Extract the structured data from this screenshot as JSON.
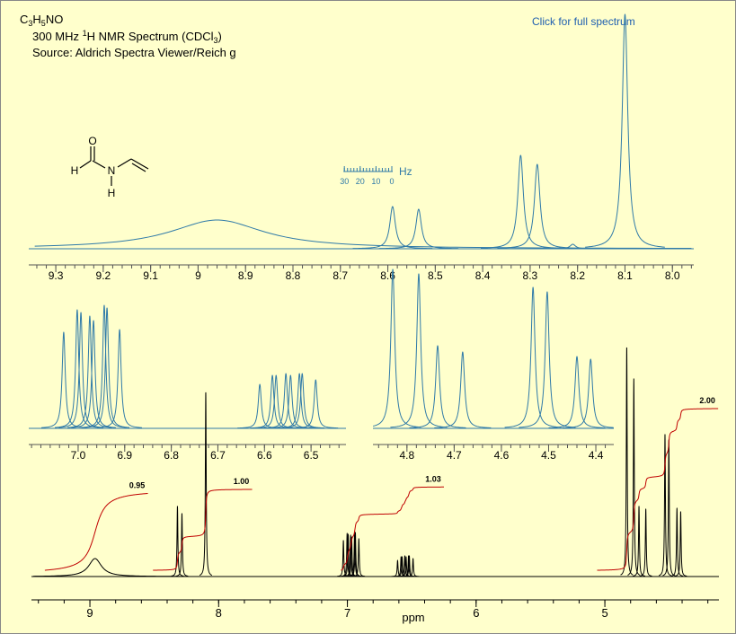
{
  "header": {
    "formula": [
      "C",
      "3",
      "H",
      "5",
      "NO"
    ],
    "line2": [
      "300 MHz ",
      "1",
      "H NMR Spectrum (CDCl",
      "3",
      ")"
    ],
    "source": "Source: Aldrich Spectra Viewer/Reich g",
    "link": "Click for full spectrum"
  },
  "molecule": {
    "atoms": [
      "O",
      "H",
      "N",
      "H"
    ]
  },
  "hz_scale": {
    "ticks": [
      30,
      20,
      10,
      0
    ],
    "unit": "Hz"
  },
  "chart_data": [
    {
      "type": "peaks",
      "xlim": [
        9.357,
        7.955
      ],
      "ylim": [
        0,
        265
      ],
      "xticks": [
        9.3,
        9.2,
        9.1,
        9.0,
        8.9,
        8.8,
        8.7,
        8.6,
        8.5,
        8.4,
        8.3,
        8.2,
        8.1,
        {
          "value": 8,
          "label": "8.0"
        }
      ],
      "series": [
        {
          "color": "#2f7aa8",
          "linewidth": 0.007,
          "x": [
            8.59,
            8.535,
            8.32,
            8.285,
            8.21,
            8.1
          ],
          "values": [
            47,
            44,
            104,
            94,
            5,
            261
          ]
        },
        {
          "color": "#2f7aa8",
          "linewidth": 0.12,
          "x": [
            8.96
          ],
          "values": [
            32
          ]
        }
      ]
    },
    {
      "type": "peaks",
      "xlim": [
        7.106,
        6.425
      ],
      "ylim": [
        0,
        145
      ],
      "xticks": [
        {
          "value": 7,
          "label": "7.0"
        },
        6.9,
        6.8,
        6.7,
        6.6,
        6.5
      ],
      "series": [
        {
          "color": "#2f7aa8",
          "linewidth": 0.004,
          "x": [
            7.031,
            7.002,
            6.994,
            6.975,
            6.967,
            6.944,
            6.938,
            6.911,
            6.61,
            6.583,
            6.575,
            6.554,
            6.544,
            6.525,
            6.519,
            6.49
          ],
          "values": [
            107,
            132,
            129,
            125,
            120,
            137,
            134,
            110,
            49,
            59,
            59,
            61,
            59,
            61,
            61,
            54
          ]
        }
      ]
    },
    {
      "type": "peaks",
      "xlim": [
        4.872,
        4.362
      ],
      "ylim": [
        0,
        180
      ],
      "xticks": [
        4.8,
        4.7,
        4.6,
        4.5,
        4.4
      ],
      "series": [
        {
          "color": "#2f7aa8",
          "linewidth": 0.005,
          "x": [
            4.83,
            4.775,
            4.735,
            4.682,
            4.533,
            4.503,
            4.44,
            4.411
          ],
          "values": [
            177,
            172,
            92,
            85,
            157,
            152,
            80,
            77
          ]
        }
      ]
    },
    {
      "type": "peaks",
      "xlim": [
        9.454,
        4.114
      ],
      "ylim": [
        0,
        260
      ],
      "xlabel": "ppm",
      "xticks": [
        9,
        8,
        7,
        6,
        5
      ],
      "series": [
        {
          "color": "#000000",
          "linewidth": 0.004,
          "x": [
            8.32,
            8.285,
            8.1,
            7.031,
            7.002,
            6.994,
            6.975,
            6.967,
            6.944,
            6.938,
            6.911,
            6.61,
            6.583,
            6.575,
            6.554,
            6.544,
            6.525,
            6.519,
            6.49,
            4.83,
            4.775,
            4.735,
            4.682,
            4.533,
            4.503,
            4.44,
            4.411
          ],
          "values": [
            78,
            70,
            205,
            40,
            48,
            47,
            46,
            44,
            50,
            49,
            42,
            18,
            22,
            22,
            23,
            22,
            23,
            23,
            20,
            255,
            220,
            78,
            75,
            158,
            152,
            76,
            72
          ]
        },
        {
          "color": "#000000",
          "linewidth": 0.06,
          "x": [
            8.96
          ],
          "values": [
            20
          ]
        }
      ],
      "integrals": {
        "color": "#c00000",
        "ranges": [
          [
            9.35,
            8.55
          ],
          [
            8.51,
            7.74
          ],
          [
            7.05,
            6.25
          ],
          [
            5.06,
            4.12
          ]
        ],
        "values": [
          0.95,
          1,
          1.03,
          2
        ],
        "value_labels": [
          "0.95",
          "1.00",
          "1.03",
          "2.00"
        ]
      }
    }
  ]
}
